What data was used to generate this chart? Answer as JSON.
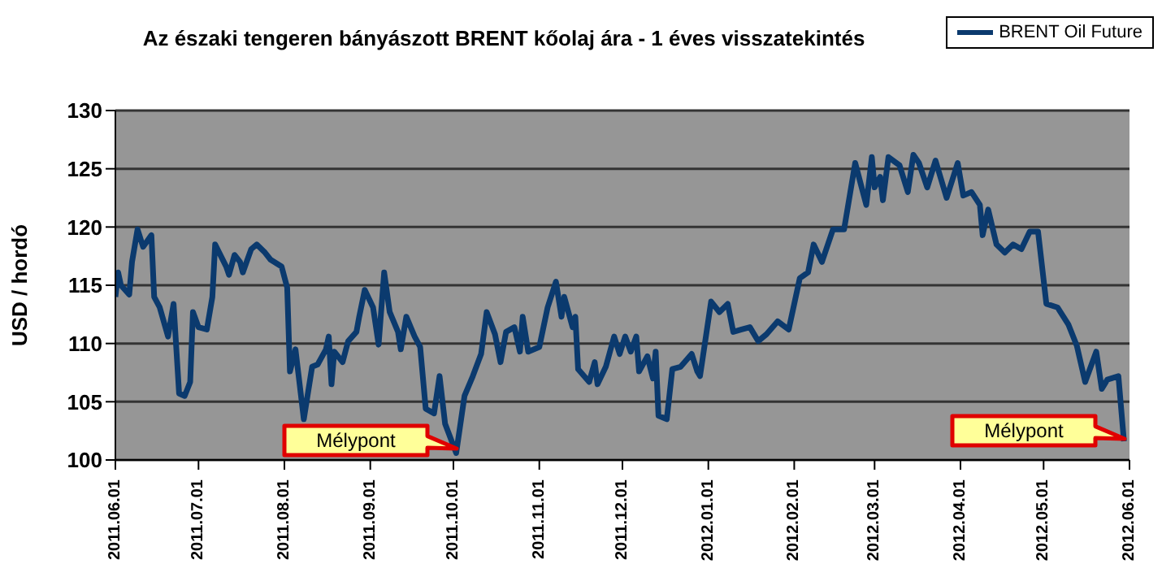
{
  "chart_data": {
    "type": "line",
    "title": "Az északi tengeren bányászott BRENT kőolaj ára - 1 éves visszatekintés",
    "ylabel": "USD / hordó",
    "x": [
      "2011-06-01",
      "2011-06-02",
      "2011-06-03",
      "2011-06-06",
      "2011-06-07",
      "2011-06-09",
      "2011-06-11",
      "2011-06-14",
      "2011-06-15",
      "2011-06-17",
      "2011-06-20",
      "2011-06-22",
      "2011-06-24",
      "2011-06-26",
      "2011-06-28",
      "2011-06-29",
      "2011-07-01",
      "2011-07-04",
      "2011-07-06",
      "2011-07-07",
      "2011-07-11",
      "2011-07-12",
      "2011-07-14",
      "2011-07-16",
      "2011-07-17",
      "2011-07-20",
      "2011-07-22",
      "2011-07-25",
      "2011-07-27",
      "2011-07-31",
      "2011-08-02",
      "2011-08-03",
      "2011-08-05",
      "2011-08-08",
      "2011-08-11",
      "2011-08-13",
      "2011-08-16",
      "2011-08-17",
      "2011-08-18",
      "2011-08-19",
      "2011-08-22",
      "2011-08-24",
      "2011-08-27",
      "2011-08-28",
      "2011-08-30",
      "2011-09-02",
      "2011-09-04",
      "2011-09-06",
      "2011-09-08",
      "2011-09-11",
      "2011-09-12",
      "2011-09-14",
      "2011-09-17",
      "2011-09-19",
      "2011-09-21",
      "2011-09-24",
      "2011-09-26",
      "2011-09-28",
      "2011-10-02",
      "2011-10-05",
      "2011-10-08",
      "2011-10-11",
      "2011-10-13",
      "2011-10-16",
      "2011-10-18",
      "2011-10-20",
      "2011-10-23",
      "2011-10-25",
      "2011-10-26",
      "2011-10-28",
      "2011-11-01",
      "2011-11-04",
      "2011-11-07",
      "2011-11-09",
      "2011-11-10",
      "2011-11-13",
      "2011-11-14",
      "2011-11-15",
      "2011-11-19",
      "2011-11-21",
      "2011-11-22",
      "2011-11-25",
      "2011-11-28",
      "2011-11-30",
      "2011-12-02",
      "2011-12-04",
      "2011-12-06",
      "2011-12-07",
      "2011-12-10",
      "2011-12-12",
      "2011-12-13",
      "2011-12-14",
      "2011-12-17",
      "2011-12-19",
      "2011-12-22",
      "2011-12-26",
      "2011-12-28",
      "2011-12-29",
      "2012-01-02",
      "2012-01-05",
      "2012-01-08",
      "2012-01-10",
      "2012-01-13",
      "2012-01-16",
      "2012-01-19",
      "2012-01-22",
      "2012-01-26",
      "2012-01-30",
      "2012-02-03",
      "2012-02-06",
      "2012-02-08",
      "2012-02-11",
      "2012-02-15",
      "2012-02-19",
      "2012-02-23",
      "2012-02-27",
      "2012-02-29",
      "2012-03-01",
      "2012-03-03",
      "2012-03-04",
      "2012-03-06",
      "2012-03-10",
      "2012-03-13",
      "2012-03-15",
      "2012-03-17",
      "2012-03-20",
      "2012-03-23",
      "2012-03-27",
      "2012-03-31",
      "2012-04-02",
      "2012-04-05",
      "2012-04-08",
      "2012-04-09",
      "2012-04-11",
      "2012-04-14",
      "2012-04-17",
      "2012-04-20",
      "2012-04-23",
      "2012-04-26",
      "2012-04-29",
      "2012-05-02",
      "2012-05-06",
      "2012-05-10",
      "2012-05-13",
      "2012-05-16",
      "2012-05-20",
      "2012-05-22",
      "2012-05-24",
      "2012-05-28",
      "2012-05-30"
    ],
    "series": [
      {
        "name": "BRENT Oil Future",
        "color": "#0b3a6e",
        "values": [
          114,
          116.1,
          115,
          114.2,
          117,
          119.8,
          118.3,
          119.3,
          114,
          113.1,
          110.6,
          113.4,
          105.7,
          105.5,
          106.7,
          112.7,
          111.4,
          111.2,
          114,
          118.5,
          116.6,
          115.9,
          117.6,
          117,
          116.1,
          118.1,
          118.5,
          117.8,
          117.2,
          116.6,
          114.8,
          107.6,
          109.5,
          103.5,
          108,
          108.2,
          109.5,
          110.6,
          106.5,
          109.3,
          108.4,
          110.2,
          111,
          112.3,
          114.6,
          113.1,
          109.9,
          116.1,
          112.7,
          111,
          109.5,
          112.3,
          110.6,
          109.7,
          104.4,
          104,
          107.2,
          103.1,
          100.6,
          105.5,
          107.2,
          109.1,
          112.7,
          110.8,
          108.4,
          111,
          111.4,
          109.3,
          112.3,
          109.3,
          109.7,
          113.1,
          115.3,
          112.3,
          114,
          111.4,
          112.3,
          107.8,
          106.7,
          108.4,
          106.5,
          108,
          110.6,
          109.1,
          110.6,
          109.3,
          110.6,
          107.6,
          108.9,
          107,
          109.3,
          103.8,
          103.5,
          107.8,
          108,
          109.1,
          107.6,
          107.2,
          113.6,
          112.7,
          113.4,
          111,
          111.2,
          111.4,
          110.2,
          110.8,
          111.9,
          111.2,
          115.6,
          116.1,
          118.5,
          117,
          119.8,
          119.8,
          125.5,
          121.9,
          126,
          123.4,
          124.3,
          122.3,
          126,
          125.3,
          123,
          126.2,
          125.5,
          123.4,
          125.7,
          122.5,
          125.5,
          122.7,
          123,
          121.9,
          119.3,
          121.5,
          118.5,
          117.8,
          118.5,
          118.1,
          119.6,
          119.6,
          113.4,
          113.1,
          111.6,
          109.8,
          106.7,
          109.3,
          106.1,
          106.9,
          107.2,
          101.6
        ]
      }
    ],
    "xlim": [
      "2011-06-01",
      "2012-06-01"
    ],
    "xticks": [
      {
        "value": "2011-06-01",
        "label": "2011.06.01"
      },
      {
        "value": "2011-07-01",
        "label": "2011.07.01"
      },
      {
        "value": "2011-08-01",
        "label": "2011.08.01"
      },
      {
        "value": "2011-09-01",
        "label": "2011.09.01"
      },
      {
        "value": "2011-10-01",
        "label": "2011.10.01"
      },
      {
        "value": "2011-11-01",
        "label": "2011.11.01"
      },
      {
        "value": "2011-12-01",
        "label": "2011.12.01"
      },
      {
        "value": "2012-01-01",
        "label": "2012.01.01"
      },
      {
        "value": "2012-02-01",
        "label": "2012.02.01"
      },
      {
        "value": "2012-03-01",
        "label": "2012.03.01"
      },
      {
        "value": "2012-04-01",
        "label": "2012.04.01"
      },
      {
        "value": "2012-05-01",
        "label": "2012.05.01"
      },
      {
        "value": "2012-06-01",
        "label": "2012.06.01"
      }
    ],
    "ylim": [
      100,
      130
    ],
    "yticks": [
      100,
      105,
      110,
      115,
      120,
      125,
      130
    ],
    "grid": "y",
    "legend": "top right",
    "marker": "none",
    "line_style": "solid",
    "annotations": [
      "Mélypont",
      "Mélypont"
    ]
  }
}
